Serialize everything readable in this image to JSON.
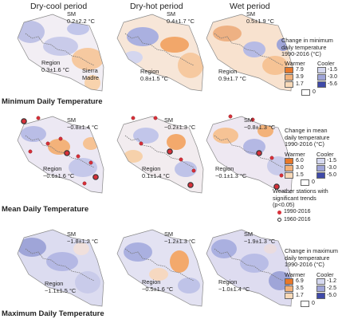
{
  "periods": [
    "Dry-cool period",
    "Dry-hot period",
    "Wet period"
  ],
  "rows": [
    {
      "title": "Minimum Daily Temperature",
      "maps": [
        {
          "sm": "SM",
          "sm_value": "0.2±2.2 °C",
          "region": "Region",
          "region_value": "0.3±1.6 °C",
          "extra": "Sierra Madre"
        },
        {
          "sm": "SM",
          "sm_value": "0.4±1.7 °C",
          "region": "Region",
          "region_value": "0.8±1.5 °C"
        },
        {
          "sm": "SM",
          "sm_value": "0.5±1.9 °C",
          "region": "Region",
          "region_value": "0.9±1.7 °C"
        }
      ],
      "legend": {
        "title_lines": [
          "Change in minimum",
          "daily temperature",
          "1990-2016 (°C)"
        ],
        "warmer": "Warmer",
        "cooler": "Cooler",
        "warm_values": [
          "7.9",
          "3.9",
          "1.7"
        ],
        "cool_values": [
          "-1.5",
          "-3.0",
          "-5.6"
        ],
        "zero": "0"
      }
    },
    {
      "title": "Mean Daily Temperature",
      "maps": [
        {
          "sm": "SM",
          "sm_value": "−0.8±1.4 °C",
          "region": "Region",
          "region_value": "−0.6±1.6 °C"
        },
        {
          "sm": "SM",
          "sm_value": "−0.2±1.3 °C",
          "region": "Region",
          "region_value": "0.1±1.4 °C"
        },
        {
          "sm": "SM",
          "sm_value": "−0.8±1.3 °C",
          "region": "Region",
          "region_value": "−0.1±1.3 °C"
        }
      ],
      "legend": {
        "title_lines": [
          "Change in mean",
          "daily temperature",
          "1990-2016 (°C)"
        ],
        "warmer": "Warmer",
        "cooler": "Cooler",
        "warm_values": [
          "6.0",
          "3.0",
          "1.5"
        ],
        "cool_values": [
          "-1.5",
          "-3.0",
          "-5.0"
        ],
        "zero": "0",
        "stations_lines": [
          "Weather stations with",
          "significant trends",
          "(p<0.05)"
        ],
        "station_1990": "1990-2016",
        "station_1960": "1960-2016"
      }
    },
    {
      "title": "Maximum Daily Temperature",
      "maps": [
        {
          "sm": "SM",
          "sm_value": "−1.8±1.2 °C",
          "region": "Region",
          "region_value": "−1.1±1.5 °C"
        },
        {
          "sm": "SM",
          "sm_value": "−1.2±1.3 °C",
          "region": "Region",
          "region_value": "−0.5±1.6 °C"
        },
        {
          "sm": "SM",
          "sm_value": "−1.9±1.3 °C",
          "region": "Region",
          "region_value": "−1.0±1.4 °C"
        }
      ],
      "legend": {
        "title_lines": [
          "Change in maximum",
          "daily temperature",
          "1990-2016 (°C)"
        ],
        "warmer": "Warmer",
        "cooler": "Cooler",
        "warm_values": [
          "6.9",
          "3.5",
          "1.7"
        ],
        "cool_values": [
          "-1.2",
          "-2.5",
          "-5.0"
        ],
        "zero": "0"
      }
    }
  ],
  "colors": {
    "warm": [
      "#e8782a",
      "#f3b27a",
      "#f8d9b8"
    ],
    "cool": [
      "#d6d9f0",
      "#9fa5d8",
      "#3f4aa8"
    ],
    "zero": "#ffffff",
    "station_1990": "#d8303a",
    "station_1960_ring": "#333333"
  }
}
